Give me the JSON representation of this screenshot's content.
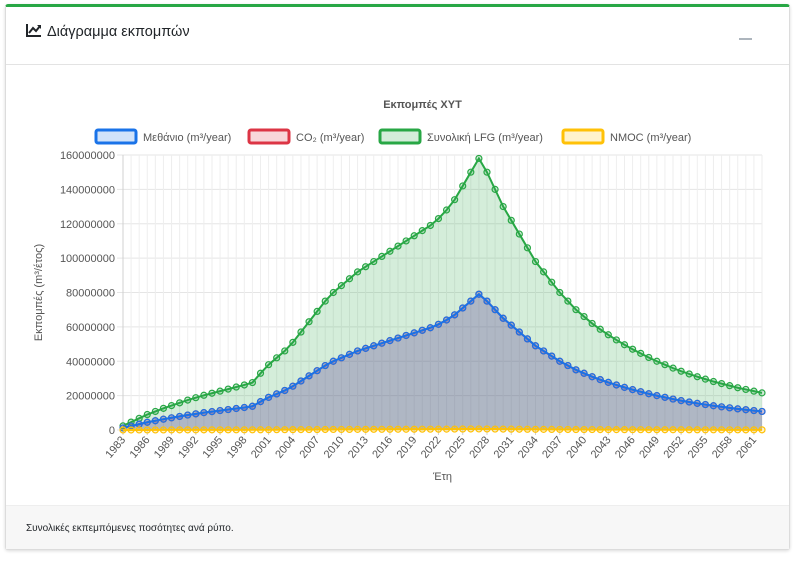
{
  "card": {
    "title": "Διάγραμμα εκπομπών",
    "title_icon": "line-chart-icon",
    "collapse_icon": "minus-icon",
    "footer_text": "Συνολικές εκπεμπόμενες ποσότητες ανά ρύπο."
  },
  "chart_data": {
    "type": "area",
    "title": "Εκπομπές ΧΥΤ",
    "xlabel": "Έτη",
    "ylabel": "Εκπομπές (m³/έτος)",
    "ylim": [
      0,
      160000000
    ],
    "yticks": [
      0,
      20000000,
      40000000,
      60000000,
      80000000,
      100000000,
      120000000,
      140000000,
      160000000
    ],
    "x_start": 1983,
    "x_end": 2062,
    "x_tick_labels": [
      "1983",
      "1986",
      "1989",
      "1992",
      "1995",
      "1998",
      "2001",
      "2004",
      "2007",
      "2010",
      "2013",
      "2016",
      "2019",
      "2022",
      "2025",
      "2028",
      "2031",
      "2034",
      "2037",
      "2040",
      "2043",
      "2046",
      "2049",
      "2052",
      "2055",
      "2058",
      "2061"
    ],
    "grid": true,
    "legend_position": "top",
    "series": [
      {
        "name": "Μεθάνιο (m³/year)",
        "color": "#1a73e8",
        "fill": "rgba(26,115,232,0.20)",
        "values": [
          1200000,
          2300000,
          3400000,
          4500000,
          5400000,
          6300000,
          7100000,
          7900000,
          8700000,
          9400000,
          10100000,
          10700000,
          11300000,
          11900000,
          12500000,
          13100000,
          13800000,
          16500000,
          19000000,
          21000000,
          23000000,
          25500000,
          28500000,
          31500000,
          34500000,
          37500000,
          40000000,
          42000000,
          44000000,
          46000000,
          47500000,
          49000000,
          50500000,
          52000000,
          53500000,
          55000000,
          56500000,
          58000000,
          59500000,
          61500000,
          64000000,
          67000000,
          71000000,
          75000000,
          79000000,
          75000000,
          70000000,
          65000000,
          61000000,
          57000000,
          53000000,
          49000000,
          46000000,
          43000000,
          40000000,
          37500000,
          35000000,
          33000000,
          31000000,
          29300000,
          27700000,
          26200000,
          24800000,
          23500000,
          22300000,
          21100000,
          20000000,
          19000000,
          18000000,
          17100000,
          16300000,
          15500000,
          14800000,
          14100000,
          13500000,
          12900000,
          12300000,
          11800000,
          11300000,
          10800000
        ]
      },
      {
        "name": "CO₂ (m³/year)",
        "color": "#dc3545",
        "fill": "rgba(220,53,69,0.20)",
        "values": [
          1200000,
          2300000,
          3400000,
          4500000,
          5400000,
          6300000,
          7100000,
          7900000,
          8700000,
          9400000,
          10100000,
          10700000,
          11300000,
          11900000,
          12500000,
          13100000,
          13800000,
          16500000,
          19000000,
          21000000,
          23000000,
          25500000,
          28500000,
          31500000,
          34500000,
          37500000,
          40000000,
          42000000,
          44000000,
          46000000,
          47500000,
          49000000,
          50500000,
          52000000,
          53500000,
          55000000,
          56500000,
          58000000,
          59500000,
          61500000,
          64000000,
          67000000,
          71000000,
          75000000,
          79000000,
          75000000,
          70000000,
          65000000,
          61000000,
          57000000,
          53000000,
          49000000,
          46000000,
          43000000,
          40000000,
          37500000,
          35000000,
          33000000,
          31000000,
          29300000,
          27700000,
          26200000,
          24800000,
          23500000,
          22300000,
          21100000,
          20000000,
          19000000,
          18000000,
          17100000,
          16300000,
          15500000,
          14800000,
          14100000,
          13500000,
          12900000,
          12300000,
          11800000,
          11300000,
          10800000
        ]
      },
      {
        "name": "Συνολική LFG (m³/year)",
        "color": "#28a745",
        "fill": "rgba(40,167,69,0.20)",
        "values": [
          2400000,
          4600000,
          6800000,
          9000000,
          10800000,
          12600000,
          14200000,
          15800000,
          17400000,
          18800000,
          20200000,
          21400000,
          22600000,
          23800000,
          25000000,
          26200000,
          27600000,
          33000000,
          38000000,
          42000000,
          46000000,
          51000000,
          57000000,
          63000000,
          69000000,
          75000000,
          80000000,
          84000000,
          88000000,
          92000000,
          95000000,
          98000000,
          101000000,
          104000000,
          107000000,
          110000000,
          113000000,
          116000000,
          119000000,
          123000000,
          128000000,
          134000000,
          142000000,
          150000000,
          158000000,
          150000000,
          140000000,
          130000000,
          122000000,
          114000000,
          106000000,
          98000000,
          92000000,
          86000000,
          80000000,
          75000000,
          70000000,
          66000000,
          62000000,
          58600000,
          55400000,
          52400000,
          49600000,
          47000000,
          44600000,
          42200000,
          40000000,
          38000000,
          36000000,
          34200000,
          32600000,
          31000000,
          29600000,
          28200000,
          27000000,
          25800000,
          24600000,
          23600000,
          22600000,
          21600000
        ]
      },
      {
        "name": "NMOC (m³/year)",
        "color": "#ffc107",
        "fill": "rgba(255,193,7,0.20)",
        "values": [
          10000,
          18000,
          27000,
          36000,
          43000,
          50000,
          57000,
          63000,
          70000,
          75000,
          81000,
          86000,
          90000,
          95000,
          100000,
          105000,
          110000,
          132000,
          152000,
          168000,
          184000,
          204000,
          228000,
          252000,
          276000,
          300000,
          320000,
          336000,
          352000,
          368000,
          380000,
          392000,
          404000,
          416000,
          428000,
          440000,
          452000,
          464000,
          476000,
          492000,
          512000,
          536000,
          568000,
          600000,
          632000,
          600000,
          560000,
          520000,
          488000,
          456000,
          424000,
          392000,
          368000,
          344000,
          320000,
          300000,
          280000,
          264000,
          248000,
          234000,
          222000,
          210000,
          198000,
          188000,
          178000,
          169000,
          160000,
          152000,
          144000,
          137000,
          130000,
          124000,
          118000,
          113000,
          108000,
          103000,
          98000,
          94000,
          90000,
          86000
        ]
      }
    ]
  }
}
